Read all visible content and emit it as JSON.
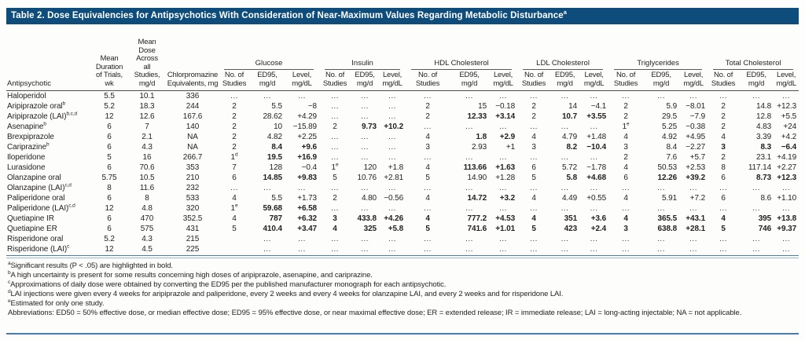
{
  "colors": {
    "header_bar": "#0e4d7b",
    "rule_blue": "#4a7aad",
    "text": "#231f20"
  },
  "title": "Table 2. Dose Equivalencies for Antipsychotics With Consideration of Near-Maximum Values Regarding Metabolic Disturbance",
  "title_sup": "a",
  "header": {
    "antipsychotic": "Antipsychotic",
    "duration": "Mean\nDuration\nof Trials,\nwk",
    "dose": "Mean\nDose\nAcross\nall\nStudies,\nmg/d",
    "chlorpromazine": "Chlorpromazine\nEquivalents, mg"
  },
  "groups": [
    {
      "label": "Glucose"
    },
    {
      "label": "Insulin"
    },
    {
      "label": "HDL Cholesterol"
    },
    {
      "label": "LDL Cholesterol"
    },
    {
      "label": "Triglycerides"
    },
    {
      "label": "Total Cholesterol"
    }
  ],
  "subheaders": {
    "studies": "No. of\nStudies",
    "ed95": "ED95,\nmg/d",
    "level": "Level,\nmg/dL"
  },
  "rows": [
    {
      "label": "Haloperidol",
      "duration": "5.5",
      "dose": "10.1",
      "cpz": "336",
      "cells": [
        "...",
        "...",
        "...",
        "...",
        "...",
        "...",
        "...",
        "...",
        "...",
        "...",
        "...",
        "...",
        "...",
        "...",
        "...",
        "...",
        "...",
        "..."
      ]
    },
    {
      "label": "Aripiprazole oral^b",
      "duration": "5.2",
      "dose": "18.3",
      "cpz": "244",
      "cells": [
        "2",
        "5.5",
        "−8",
        "...",
        "...",
        "...",
        "2",
        "15",
        "−0.18",
        "2",
        "14",
        "−4.1",
        "2",
        "5.9",
        "−8.01",
        "2",
        "14.8",
        "+12.3"
      ]
    },
    {
      "label": "Aripiprazole (LAI)^b,c,d",
      "duration": "12",
      "dose": "12.6",
      "cpz": "167.6",
      "cells": [
        "2",
        "28.62",
        "+4.29",
        "...",
        "...",
        "...",
        "2",
        "*12.33",
        "*+3.14",
        "2",
        "*10.7",
        "*+3.55",
        "2",
        "29.5",
        "−7.9",
        "2",
        "12.8",
        "+5.5"
      ]
    },
    {
      "label": "Asenapine^b",
      "duration": "6",
      "dose": "7",
      "cpz": "140",
      "cells": [
        "2",
        "10",
        "−15.89",
        "2",
        "*9.73",
        "*+10.2",
        "...",
        "...",
        "...",
        "...",
        "...",
        "...",
        "1^e",
        "5.25",
        "−0.38",
        "2",
        "4.83",
        "+24"
      ]
    },
    {
      "label": "Brexpiprazole",
      "duration": "6",
      "dose": "2.1",
      "cpz": "NA",
      "cells": [
        "2",
        "4.82",
        "+2.25",
        "...",
        "...",
        "...",
        "4",
        "*1.8",
        "*+2.9",
        "4",
        "4.79",
        "+1.48",
        "4",
        "4.92",
        "+4.95",
        "4",
        "3.39",
        "+4.2"
      ]
    },
    {
      "label": "Cariprazine^b",
      "duration": "6",
      "dose": "4.3",
      "cpz": "NA",
      "cells": [
        "2",
        "*8.4",
        "*+9.6",
        "...",
        "...",
        "...",
        "3",
        "2.93",
        "+1",
        "3",
        "*8.2",
        "*−10.4",
        "3",
        "8.4",
        "−2.27",
        "*3",
        "*8.3",
        "*−6.4"
      ]
    },
    {
      "label": "Iloperidone",
      "duration": "5",
      "dose": "16",
      "cpz": "266.7",
      "cells": [
        "1^d",
        "*19.5",
        "*+16.9",
        "...",
        "...",
        "...",
        "...",
        "...",
        "...",
        "...",
        "...",
        "...",
        "2",
        "7.6",
        "+5.7",
        "2",
        "23.1",
        "+4.19"
      ]
    },
    {
      "label": "Lurasidone",
      "duration": "6",
      "dose": "70.6",
      "cpz": "353",
      "cells": [
        "7",
        "128",
        "−0.4",
        "1^e",
        "120",
        "+1.8",
        "4",
        "*113.66",
        "*+1.63",
        "6",
        "5.72",
        "−1.78",
        "4",
        "50.53",
        "+2.53",
        "8",
        "117.14",
        "+2.27"
      ]
    },
    {
      "label": "Olanzapine oral",
      "duration": "5.75",
      "dose": "10.5",
      "cpz": "210",
      "cells": [
        "6",
        "*14.85",
        "*+9.83",
        "5",
        "10.76",
        "+2.81",
        "5",
        "14.90",
        "+1.28",
        "5",
        "*5.8",
        "*+4.68",
        "6",
        "*12.26",
        "*+39.2",
        "6",
        "*8.73",
        "*+12.3"
      ]
    },
    {
      "label": "Olanzapine (LAI)^c,d",
      "duration": "8",
      "dose": "11.6",
      "cpz": "232",
      "cells": [
        "...",
        "...",
        "...",
        "...",
        "...",
        "...",
        "...",
        "...",
        "...",
        "...",
        "...",
        "...",
        "...",
        "...",
        "...",
        "...",
        "...",
        "..."
      ]
    },
    {
      "label": "Paliperidone oral",
      "duration": "6",
      "dose": "8",
      "cpz": "533",
      "cells": [
        "4",
        "5.5",
        "+1.73",
        "2",
        "4.80",
        "−0.56",
        "4",
        "*14.72",
        "*+3.2",
        "4",
        "4.49",
        "+0.55",
        "4",
        "5.91",
        "+7.2",
        "6",
        "8.6",
        "+1.10"
      ]
    },
    {
      "label": "Paliperidone (LAI)^c,d",
      "duration": "12",
      "dose": "4.8",
      "cpz": "320",
      "cells": [
        "1^e",
        "*59.68",
        "*+6.58",
        "...",
        "...",
        "...",
        "...",
        "...",
        "...",
        "...",
        "...",
        "...",
        "...",
        "...",
        "...",
        "...",
        "...",
        "..."
      ]
    },
    {
      "label": "Quetiapine IR",
      "duration": "6",
      "dose": "470",
      "cpz": "352.5",
      "cells": [
        "4",
        "*787",
        "*+6.32",
        "*3",
        "*433.8",
        "*+4.26",
        "*4",
        "*777.2",
        "*+4.53",
        "*4",
        "*351",
        "*+3.6",
        "*4",
        "*365.5",
        "*+43.1",
        "*4",
        "*395",
        "*+13.8"
      ]
    },
    {
      "label": "Quetiapine ER",
      "duration": "6",
      "dose": "575",
      "cpz": "431",
      "cells": [
        "5",
        "*410.4",
        "*+3.47",
        "*4",
        "*325",
        "*+5.8",
        "*5",
        "*741.6",
        "*+1.01",
        "*5",
        "*423",
        "*+2.4",
        "*3",
        "*638.8",
        "*+28.1",
        "*5",
        "*746",
        "*+9.37"
      ]
    },
    {
      "label": "Risperidone oral",
      "duration": "5.2",
      "dose": "4.3",
      "cpz": "215",
      "cells": [
        "",
        "...",
        "...",
        "...",
        "...",
        "...",
        "...",
        "...",
        "...",
        "...",
        "...",
        "...",
        "...",
        "...",
        "...",
        "...",
        "...",
        "..."
      ]
    },
    {
      "label": "Risperidone (LAI)^c",
      "duration": "12",
      "dose": "4.5",
      "cpz": "225",
      "cells": [
        "",
        "...",
        "...",
        "...",
        "...",
        "...",
        "...",
        "...",
        "...",
        "...",
        "...",
        "...",
        "...",
        "...",
        "...",
        "...",
        "...",
        "..."
      ]
    }
  ],
  "footnotes": [
    {
      "sup": "a",
      "text": "Significant results (P < .05) are highlighted in bold."
    },
    {
      "sup": "b",
      "text": "A high uncertainty is present for some results concerning high doses of aripiprazole, asenapine, and cariprazine."
    },
    {
      "sup": "c",
      "text": "Approximations of daily dose were obtained by converting the ED95 per the published manufacturer monograph for each antipsychotic."
    },
    {
      "sup": "d",
      "text": "LAI injections were given every 4 weeks for aripiprazole and paliperidone, every 2 weeks and every 4 weeks for olanzapine LAI, and every 2 weeks and for risperidone LAI."
    },
    {
      "sup": "e",
      "text": "Estimated for only one study."
    },
    {
      "sup": "",
      "text": "Abbreviations: ED50 = 50% effective dose, or median effective dose; ED95 = 95% effective dose, or near maximal effective dose; ER = extended release; IR = immediate release; LAI = long-acting injectable; NA = not applicable."
    }
  ]
}
